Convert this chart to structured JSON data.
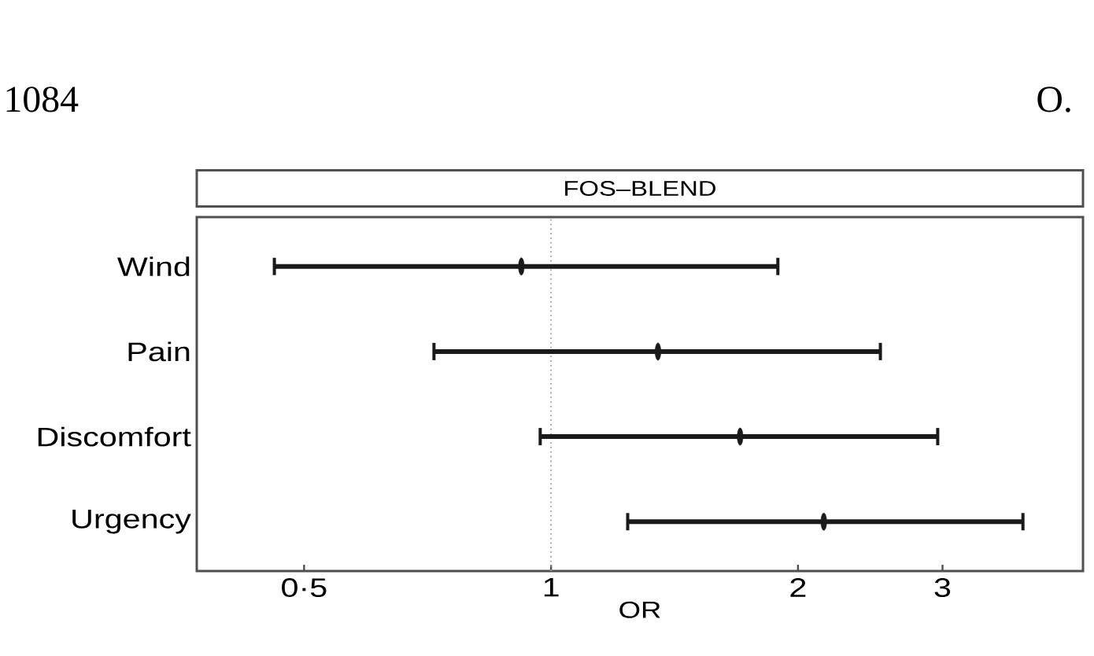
{
  "chart_data": {
    "type": "scatter",
    "orientation": "horizontal",
    "title": "FOS–BLEND",
    "xlabel": "OR",
    "categories": [
      "Wind",
      "Pain",
      "Discomfort",
      "Urgency"
    ],
    "values": [
      0.92,
      1.35,
      1.7,
      2.15
    ],
    "errors": [
      [
        0.46,
        1.89
      ],
      [
        0.72,
        2.52
      ],
      [
        0.97,
        2.96
      ],
      [
        1.24,
        3.76
      ]
    ],
    "color": "#1a1a1a",
    "log": "x",
    "xlim": [
      0.37,
      4.45
    ],
    "xticks": [
      {
        "value": 0.5,
        "label": "0·5"
      },
      1,
      2,
      3
    ],
    "ref_lines": [
      {
        "axis": "x",
        "value": 1,
        "color": "#a0a0a0",
        "line_style": "dotted"
      }
    ],
    "annotations": [
      "1084",
      "O."
    ]
  }
}
